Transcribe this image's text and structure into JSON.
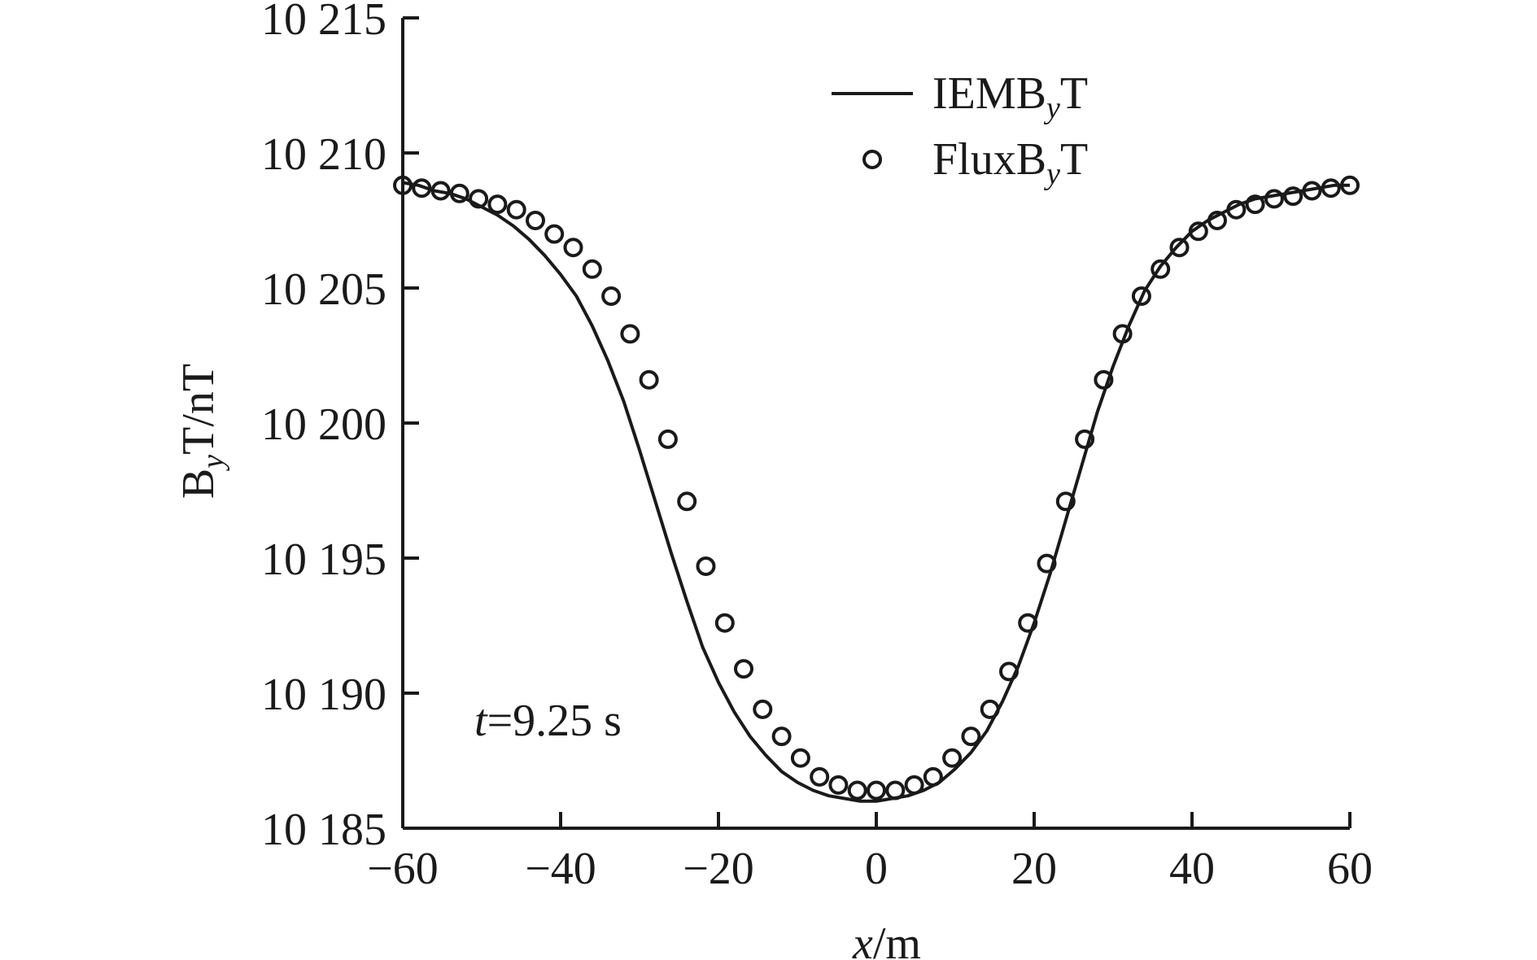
{
  "chart_data": {
    "type": "line",
    "title": "",
    "xlabel": {
      "var": "x",
      "unit": "/m"
    },
    "ylabel": {
      "base": "B",
      "sub": "y",
      "rest": "T/nT"
    },
    "xlim": [
      -60,
      60
    ],
    "ylim": [
      10185,
      10215
    ],
    "x_ticks": [
      -60,
      -40,
      -20,
      0,
      20,
      40,
      60
    ],
    "x_tick_labels": [
      "−60",
      "−40",
      "−20",
      "0",
      "20",
      "40",
      "60"
    ],
    "y_ticks": [
      10185,
      10190,
      10195,
      10200,
      10205,
      10210,
      10215
    ],
    "y_tick_labels": [
      "10 185",
      "10 190",
      "10 195",
      "10 200",
      "10 205",
      "10 210",
      "10 215"
    ],
    "grid": false,
    "legend_position": "top-right",
    "annotation": {
      "var": "t",
      "value": "=9.25 s"
    },
    "series": [
      {
        "name": "IEMB",
        "name_sub": "y",
        "name_suffix": "T",
        "style": "solid-line",
        "x": [
          -60,
          -58,
          -56,
          -54,
          -52,
          -50,
          -48,
          -46,
          -44,
          -42,
          -40,
          -38,
          -36,
          -34,
          -32,
          -30,
          -28,
          -26,
          -24,
          -22,
          -20,
          -18,
          -16,
          -14,
          -12,
          -10,
          -8,
          -6,
          -4,
          -2,
          0,
          2,
          4,
          6,
          8,
          10,
          12,
          14,
          16,
          18,
          20,
          22,
          24,
          26,
          28,
          30,
          32,
          34,
          36,
          38,
          40,
          42,
          44,
          46,
          48,
          50,
          52,
          54,
          56,
          58,
          60
        ],
        "y": [
          10208.9,
          10208.8,
          10208.6,
          10208.5,
          10208.3,
          10208.0,
          10207.7,
          10207.3,
          10206.8,
          10206.2,
          10205.5,
          10204.7,
          10203.6,
          10202.3,
          10200.8,
          10199.0,
          10197.1,
          10195.2,
          10193.4,
          10191.7,
          10190.4,
          10189.3,
          10188.4,
          10187.7,
          10187.1,
          10186.7,
          10186.4,
          10186.2,
          10186.1,
          10186.0,
          10186.0,
          10186.1,
          10186.2,
          10186.4,
          10186.7,
          10187.2,
          10187.8,
          10188.6,
          10189.7,
          10191.0,
          10192.6,
          10194.4,
          10196.4,
          10198.4,
          10200.4,
          10202.1,
          10203.6,
          10204.9,
          10205.8,
          10206.5,
          10207.1,
          10207.5,
          10207.8,
          10208.1,
          10208.3,
          10208.4,
          10208.5,
          10208.6,
          10208.7,
          10208.8,
          10208.8
        ]
      },
      {
        "name": "FluxB",
        "name_sub": "y",
        "name_suffix": "T",
        "style": "open-circle",
        "x": [
          -60,
          -57.6,
          -55.2,
          -52.8,
          -50.4,
          -48,
          -45.6,
          -43.2,
          -40.8,
          -38.4,
          -36,
          -33.6,
          -31.2,
          -28.8,
          -26.4,
          -24,
          -21.6,
          -19.2,
          -16.8,
          -14.4,
          -12,
          -9.6,
          -7.2,
          -4.8,
          -2.4,
          0,
          2.4,
          4.8,
          7.2,
          9.6,
          12,
          14.4,
          16.8,
          19.2,
          21.6,
          24,
          26.4,
          28.8,
          31.2,
          33.6,
          36,
          38.4,
          40.8,
          43.2,
          45.6,
          48,
          50.4,
          52.8,
          55.2,
          57.6,
          60
        ],
        "y": [
          10208.8,
          10208.7,
          10208.6,
          10208.5,
          10208.3,
          10208.1,
          10207.9,
          10207.5,
          10207.0,
          10206.5,
          10205.7,
          10204.7,
          10203.3,
          10201.6,
          10199.4,
          10197.1,
          10194.7,
          10192.6,
          10190.9,
          10189.4,
          10188.4,
          10187.6,
          10186.9,
          10186.6,
          10186.4,
          10186.4,
          10186.4,
          10186.6,
          10186.9,
          10187.6,
          10188.4,
          10189.4,
          10190.8,
          10192.6,
          10194.8,
          10197.1,
          10199.4,
          10201.6,
          10203.3,
          10204.7,
          10205.7,
          10206.5,
          10207.1,
          10207.5,
          10207.9,
          10208.1,
          10208.3,
          10208.4,
          10208.6,
          10208.7,
          10208.8
        ]
      }
    ]
  }
}
